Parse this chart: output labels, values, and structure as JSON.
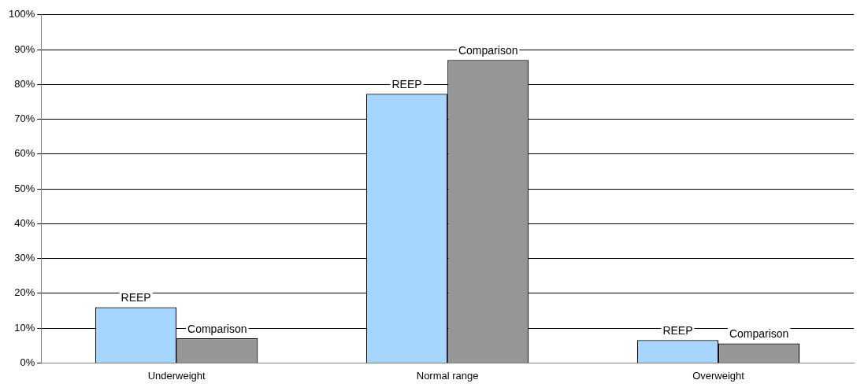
{
  "chart_data": {
    "type": "bar",
    "categories": [
      "Underweight",
      "Normal range",
      "Overweight"
    ],
    "series": [
      {
        "name": "REEP",
        "color": "#a6d5fd",
        "values": [
          16,
          77.3,
          6.6
        ]
      },
      {
        "name": "Comparison",
        "color": "#969696",
        "values": [
          7.1,
          87,
          5.6
        ]
      }
    ],
    "ylim": [
      0,
      100
    ],
    "yticks": [
      {
        "value": 0,
        "label": "0%"
      },
      {
        "value": 10,
        "label": "10%"
      },
      {
        "value": 20,
        "label": "20%"
      },
      {
        "value": 30,
        "label": "30%"
      },
      {
        "value": 40,
        "label": "40%"
      },
      {
        "value": 50,
        "label": "50%"
      },
      {
        "value": 60,
        "label": "60%"
      },
      {
        "value": 70,
        "label": "70%"
      },
      {
        "value": 80,
        "label": "80%"
      },
      {
        "value": 90,
        "label": "90%"
      },
      {
        "value": 100,
        "label": "100%"
      }
    ],
    "grid": "y",
    "legend": false
  }
}
